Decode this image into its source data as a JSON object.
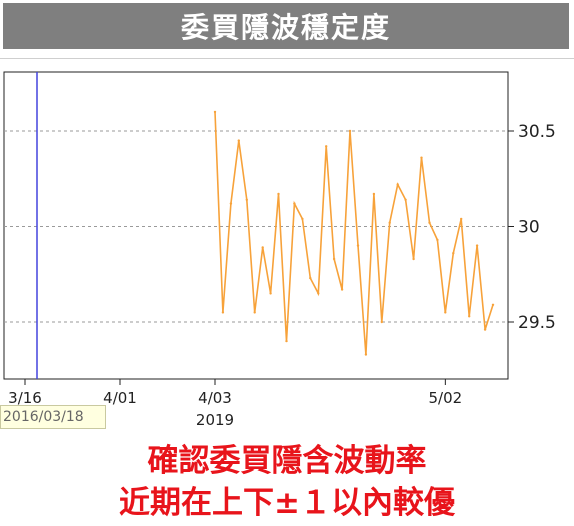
{
  "header": {
    "title": "委買隱波穩定度"
  },
  "tooltip": {
    "text": "2016/03/18"
  },
  "caption": {
    "line1": "確認委買隱含波動率",
    "line2": "近期在上下±１以內較優"
  },
  "colors": {
    "line": "#f7a23a",
    "cursor": "#4444dd",
    "caption": "#e8141b",
    "title_bg": "#7f7f7f"
  },
  "chart_data": {
    "type": "line",
    "title": "",
    "xlabel": "",
    "ylabel": "",
    "y_ticks": [
      29.5,
      30,
      30.5
    ],
    "y_tick_labels": [
      "29.5",
      "30",
      "30.5"
    ],
    "ylim": [
      29.2,
      30.8
    ],
    "grid": "horizontal dashed",
    "x_tick_labels": [
      {
        "date": "2016-03-16",
        "lines": [
          "3/16",
          "2016"
        ]
      },
      {
        "date": "2016-04-01",
        "lines": [
          "4/01"
        ]
      },
      {
        "date": "2019-04-03",
        "lines": [
          "4/03",
          "2019"
        ]
      },
      {
        "date": "2019-05-02",
        "lines": [
          "5/02"
        ]
      }
    ],
    "cursor_date": "2016-03-18",
    "series": [
      {
        "values": [
          {
            "x": "2019-04-03",
            "y": 30.6
          },
          {
            "x": "2019-04-04",
            "y": 29.55
          },
          {
            "x": "2019-04-05",
            "y": 30.12
          },
          {
            "x": "2019-04-06",
            "y": 30.45
          },
          {
            "x": "2019-04-07",
            "y": 30.14
          },
          {
            "x": "2019-04-08",
            "y": 29.55
          },
          {
            "x": "2019-04-09",
            "y": 29.89
          },
          {
            "x": "2019-04-10",
            "y": 29.65
          },
          {
            "x": "2019-04-11",
            "y": 30.17
          },
          {
            "x": "2019-04-12",
            "y": 29.4
          },
          {
            "x": "2019-04-13",
            "y": 30.12
          },
          {
            "x": "2019-04-14",
            "y": 30.04
          },
          {
            "x": "2019-04-15",
            "y": 29.73
          },
          {
            "x": "2019-04-16",
            "y": 29.65
          },
          {
            "x": "2019-04-17",
            "y": 30.42
          },
          {
            "x": "2019-04-18",
            "y": 29.83
          },
          {
            "x": "2019-04-19",
            "y": 29.67
          },
          {
            "x": "2019-04-20",
            "y": 30.5
          },
          {
            "x": "2019-04-21",
            "y": 29.9
          },
          {
            "x": "2019-04-22",
            "y": 29.33
          },
          {
            "x": "2019-04-23",
            "y": 30.17
          },
          {
            "x": "2019-04-24",
            "y": 29.5
          },
          {
            "x": "2019-04-25",
            "y": 30.02
          },
          {
            "x": "2019-04-26",
            "y": 30.22
          },
          {
            "x": "2019-04-27",
            "y": 30.14
          },
          {
            "x": "2019-04-28",
            "y": 29.83
          },
          {
            "x": "2019-04-29",
            "y": 30.36
          },
          {
            "x": "2019-04-30",
            "y": 30.02
          },
          {
            "x": "2019-05-01",
            "y": 29.93
          },
          {
            "x": "2019-05-02",
            "y": 29.55
          },
          {
            "x": "2019-05-03",
            "y": 29.86
          },
          {
            "x": "2019-05-04",
            "y": 30.04
          },
          {
            "x": "2019-05-05",
            "y": 29.53
          },
          {
            "x": "2019-05-06",
            "y": 29.9
          },
          {
            "x": "2019-05-07",
            "y": 29.46
          },
          {
            "x": "2019-05-08",
            "y": 29.59
          }
        ]
      }
    ]
  }
}
